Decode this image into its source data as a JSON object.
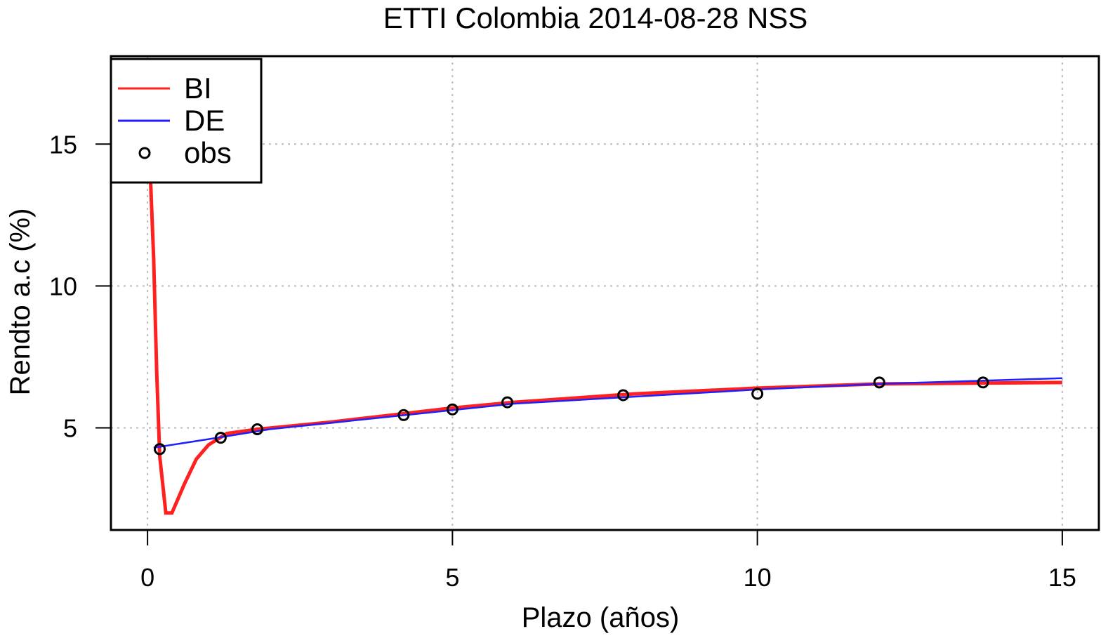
{
  "chart_data": {
    "type": "line",
    "title": "ETTI Colombia 2014-08-28 NSS",
    "x_label": "Plazo (años)",
    "y_label": "Rendto a.c (%)",
    "xlim": [
      -0.6,
      15.6
    ],
    "ylim": [
      1.4,
      18.1
    ],
    "xticks": [
      0,
      5,
      10,
      15
    ],
    "yticks": [
      5,
      10,
      15
    ],
    "grid": true,
    "legend": "top-left",
    "series": [
      {
        "name": "BI",
        "color": "#ff2020",
        "x": [
          0.05,
          0.1,
          0.15,
          0.2,
          0.3,
          0.4,
          0.6,
          0.8,
          1.0,
          1.3,
          1.8,
          3,
          4,
          5,
          6,
          8,
          10,
          12,
          15
        ],
        "values": [
          13.7,
          11,
          7,
          4,
          2,
          2,
          3,
          3.9,
          4.4,
          4.8,
          4.95,
          5.2,
          5.45,
          5.7,
          5.9,
          6.2,
          6.4,
          6.55,
          6.6
        ]
      },
      {
        "name": "DE",
        "color": "#2020ff",
        "x": [
          0.1,
          1,
          2,
          4,
          6,
          8,
          10,
          12,
          15
        ],
        "values": [
          4.3,
          4.6,
          4.95,
          5.4,
          5.85,
          6.1,
          6.35,
          6.55,
          6.75
        ]
      },
      {
        "name": "obs",
        "color": "#000000",
        "marker": "circle",
        "x": [
          0.2,
          1.2,
          1.8,
          4.2,
          5,
          5.9,
          7.8,
          10,
          12,
          13.7
        ],
        "values": [
          4.25,
          4.65,
          4.95,
          5.45,
          5.65,
          5.9,
          6.15,
          6.2,
          6.6,
          6.6
        ]
      }
    ]
  }
}
